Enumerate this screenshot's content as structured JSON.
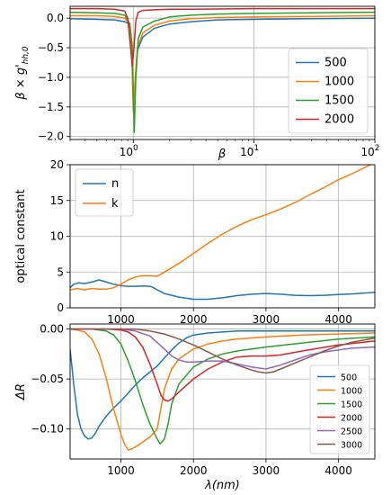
{
  "chart_data": [
    {
      "type": "line",
      "xlabel": "β",
      "ylabel": "β × g'_{hh,0}",
      "xscale": "log",
      "xlim": [
        0.3,
        100
      ],
      "ylim": [
        -2.05,
        0.2
      ],
      "xticks": [
        {
          "value": 1,
          "base": "10",
          "exp": "0"
        },
        {
          "value": 10,
          "base": "10",
          "exp": "1"
        },
        {
          "value": 100,
          "base": "10",
          "exp": "2"
        }
      ],
      "yticks": [
        {
          "value": 0,
          "label": "0.0"
        },
        {
          "value": -0.5,
          "label": "−0.5"
        },
        {
          "value": -1,
          "label": "−1.0"
        },
        {
          "value": -1.5,
          "label": "−1.5"
        },
        {
          "value": -2,
          "label": "−2.0"
        }
      ],
      "grid": true,
      "legend_position": "lower right",
      "series": [
        {
          "name": "500",
          "color": "#1f77b4",
          "x": [
            0.3,
            0.5,
            0.7,
            0.85,
            0.92,
            0.97,
            1.0,
            1.03,
            1.08,
            1.2,
            1.5,
            2,
            3,
            5,
            10,
            30,
            100
          ],
          "y": [
            -0.01,
            -0.02,
            -0.03,
            -0.06,
            -0.1,
            -0.4,
            -1.33,
            -1.25,
            -0.55,
            -0.32,
            -0.17,
            -0.1,
            -0.06,
            -0.03,
            -0.02,
            -0.01,
            0.0
          ]
        },
        {
          "name": "1000",
          "color": "#ff7f0e",
          "x": [
            0.3,
            0.5,
            0.7,
            0.85,
            0.93,
            0.97,
            1.0,
            1.03,
            1.08,
            1.2,
            1.5,
            2,
            3,
            5,
            10,
            30,
            100
          ],
          "y": [
            0.04,
            0.04,
            0.03,
            0.0,
            -0.1,
            -0.6,
            -1.6,
            -1.1,
            -0.5,
            -0.25,
            -0.12,
            -0.05,
            -0.01,
            0.01,
            0.02,
            0.03,
            0.04
          ]
        },
        {
          "name": "1500",
          "color": "#2ca02c",
          "x": [
            0.3,
            0.5,
            0.7,
            0.85,
            0.94,
            0.98,
            1.02,
            1.05,
            1.1,
            1.2,
            1.5,
            2,
            3,
            5,
            10,
            30,
            100
          ],
          "y": [
            0.1,
            0.09,
            0.08,
            0.05,
            -0.1,
            -0.5,
            -1.93,
            -1.0,
            -0.35,
            -0.15,
            -0.05,
            0.02,
            0.05,
            0.07,
            0.08,
            0.09,
            0.1
          ]
        },
        {
          "name": "2000",
          "color": "#d62728",
          "x": [
            0.3,
            0.5,
            0.7,
            0.85,
            0.9,
            0.95,
            0.98,
            1.01,
            1.05,
            1.1,
            1.2,
            1.5,
            2,
            3,
            10,
            100
          ],
          "y": [
            0.16,
            0.16,
            0.15,
            0.12,
            0.0,
            -0.5,
            -0.8,
            -0.55,
            -0.05,
            0.1,
            0.13,
            0.14,
            0.15,
            0.15,
            0.16,
            0.16
          ]
        }
      ]
    },
    {
      "type": "line",
      "ylabel": "optical constant",
      "xlim": [
        300,
        4500
      ],
      "ylim": [
        0,
        20
      ],
      "xticks": [
        {
          "value": 1000,
          "label": "1000"
        },
        {
          "value": 2000,
          "label": "2000"
        },
        {
          "value": 3000,
          "label": "3000"
        },
        {
          "value": 4000,
          "label": "4000"
        }
      ],
      "yticks": [
        {
          "value": 0,
          "label": "0"
        },
        {
          "value": 5,
          "label": "5"
        },
        {
          "value": 10,
          "label": "10"
        },
        {
          "value": 15,
          "label": "15"
        },
        {
          "value": 20,
          "label": "20"
        }
      ],
      "grid": true,
      "legend_position": "upper left",
      "series": [
        {
          "name": "n",
          "color": "#1f77b4",
          "x": [
            300,
            350,
            420,
            500,
            600,
            700,
            800,
            900,
            1000,
            1100,
            1200,
            1300,
            1400,
            1450,
            1500,
            1600,
            1800,
            2000,
            2200,
            2400,
            2600,
            2800,
            3000,
            3200,
            3400,
            3600,
            3800,
            4000,
            4200,
            4500
          ],
          "y": [
            2.8,
            3.3,
            3.5,
            3.4,
            3.6,
            3.9,
            3.6,
            3.3,
            3.1,
            3.0,
            3.0,
            3.05,
            3.0,
            2.8,
            2.5,
            2.0,
            1.5,
            1.2,
            1.2,
            1.4,
            1.7,
            1.9,
            2.0,
            1.9,
            1.75,
            1.7,
            1.75,
            1.85,
            1.95,
            2.15
          ]
        },
        {
          "name": "k",
          "color": "#ff7f0e",
          "x": [
            300,
            400,
            500,
            600,
            700,
            800,
            900,
            1000,
            1100,
            1200,
            1300,
            1400,
            1500,
            1600,
            1800,
            2000,
            2200,
            2400,
            2600,
            2800,
            3000,
            3200,
            3400,
            3600,
            3800,
            4000,
            4200,
            4500
          ],
          "y": [
            2.5,
            2.7,
            2.5,
            2.7,
            2.6,
            2.6,
            2.8,
            3.3,
            3.9,
            4.3,
            4.5,
            4.5,
            4.4,
            5.0,
            6.2,
            7.6,
            9.0,
            10.3,
            11.4,
            12.3,
            13.0,
            13.8,
            14.7,
            15.8,
            16.8,
            17.9,
            18.8,
            20.3
          ]
        }
      ]
    },
    {
      "type": "line",
      "xlabel": "λ(nm)",
      "ylabel": "ΔR",
      "xlim": [
        300,
        4500
      ],
      "ylim": [
        -0.13,
        0.005
      ],
      "xticks": [
        {
          "value": 1000,
          "label": "1000"
        },
        {
          "value": 2000,
          "label": "2000"
        },
        {
          "value": 3000,
          "label": "3000"
        },
        {
          "value": 4000,
          "label": "4000"
        }
      ],
      "yticks": [
        {
          "value": 0,
          "label": "0.00"
        },
        {
          "value": -0.05,
          "label": "−0.05"
        },
        {
          "value": -0.1,
          "label": "−0.10"
        }
      ],
      "grid": true,
      "legend_position": "lower right",
      "series": [
        {
          "name": "500",
          "color": "#1f77b4",
          "x": [
            300,
            350,
            400,
            450,
            500,
            550,
            600,
            650,
            700,
            800,
            900,
            1000,
            1100,
            1200,
            1300,
            1400,
            1500,
            1600,
            1700,
            1800,
            1900,
            2000,
            2200,
            2400,
            2600,
            3000,
            3500,
            4000,
            4500
          ],
          "y": [
            -0.02,
            -0.055,
            -0.085,
            -0.1,
            -0.107,
            -0.11,
            -0.109,
            -0.104,
            -0.097,
            -0.087,
            -0.079,
            -0.072,
            -0.064,
            -0.056,
            -0.049,
            -0.043,
            -0.037,
            -0.029,
            -0.021,
            -0.014,
            -0.009,
            -0.006,
            -0.004,
            -0.003,
            -0.002,
            -0.002,
            -0.002,
            -0.002,
            -0.002
          ]
        },
        {
          "name": "1000",
          "color": "#ff7f0e",
          "x": [
            300,
            400,
            500,
            600,
            700,
            800,
            900,
            1000,
            1050,
            1100,
            1150,
            1200,
            1300,
            1400,
            1500,
            1550,
            1600,
            1700,
            1800,
            2000,
            2200,
            2400,
            2600,
            3000,
            3500,
            4000,
            4500
          ],
          "y": [
            0.0,
            -0.001,
            -0.003,
            -0.01,
            -0.025,
            -0.05,
            -0.08,
            -0.105,
            -0.115,
            -0.121,
            -0.12,
            -0.118,
            -0.113,
            -0.108,
            -0.1,
            -0.08,
            -0.06,
            -0.04,
            -0.03,
            -0.02,
            -0.015,
            -0.012,
            -0.01,
            -0.008,
            -0.006,
            -0.005,
            -0.004
          ]
        },
        {
          "name": "1500",
          "color": "#2ca02c",
          "x": [
            300,
            600,
            800,
            900,
            1000,
            1100,
            1200,
            1300,
            1400,
            1500,
            1540,
            1600,
            1650,
            1700,
            1800,
            2000,
            2200,
            2400,
            2600,
            3000,
            3500,
            4000,
            4500
          ],
          "y": [
            0.0,
            0.0,
            -0.002,
            -0.006,
            -0.015,
            -0.032,
            -0.052,
            -0.075,
            -0.095,
            -0.11,
            -0.115,
            -0.11,
            -0.095,
            -0.075,
            -0.055,
            -0.038,
            -0.03,
            -0.025,
            -0.022,
            -0.018,
            -0.014,
            -0.01,
            -0.008
          ]
        },
        {
          "name": "2000",
          "color": "#d62728",
          "x": [
            300,
            800,
            1000,
            1100,
            1200,
            1300,
            1400,
            1500,
            1550,
            1600,
            1650,
            1700,
            1800,
            2000,
            2200,
            2400,
            2600,
            2800,
            3000,
            3200,
            3500,
            4000,
            4500
          ],
          "y": [
            0.0,
            0.0,
            -0.001,
            -0.003,
            -0.008,
            -0.018,
            -0.035,
            -0.055,
            -0.066,
            -0.071,
            -0.072,
            -0.07,
            -0.063,
            -0.05,
            -0.04,
            -0.033,
            -0.028,
            -0.027,
            -0.027,
            -0.026,
            -0.022,
            -0.016,
            -0.012
          ]
        },
        {
          "name": "2500",
          "color": "#9467bd",
          "x": [
            300,
            1000,
            1200,
            1400,
            1600,
            1700,
            1800,
            1900,
            2000,
            2200,
            2400,
            2600,
            2800,
            3000,
            3200,
            3400,
            3600,
            3800,
            4000,
            4200,
            4500
          ],
          "y": [
            0.0,
            0.0,
            -0.002,
            -0.007,
            -0.02,
            -0.027,
            -0.031,
            -0.033,
            -0.033,
            -0.032,
            -0.032,
            -0.035,
            -0.038,
            -0.04,
            -0.036,
            -0.031,
            -0.026,
            -0.023,
            -0.021,
            -0.019,
            -0.018
          ]
        },
        {
          "name": "3000",
          "color": "#8c564b",
          "x": [
            300,
            1200,
            1400,
            1600,
            1800,
            2000,
            2200,
            2400,
            2600,
            2800,
            2900,
            3000,
            3100,
            3200,
            3400,
            3600,
            3800,
            4000,
            4200,
            4500
          ],
          "y": [
            0.0,
            0.0,
            -0.002,
            -0.005,
            -0.01,
            -0.016,
            -0.023,
            -0.03,
            -0.036,
            -0.041,
            -0.043,
            -0.044,
            -0.043,
            -0.04,
            -0.034,
            -0.028,
            -0.022,
            -0.017,
            -0.013,
            -0.009
          ]
        }
      ]
    }
  ]
}
